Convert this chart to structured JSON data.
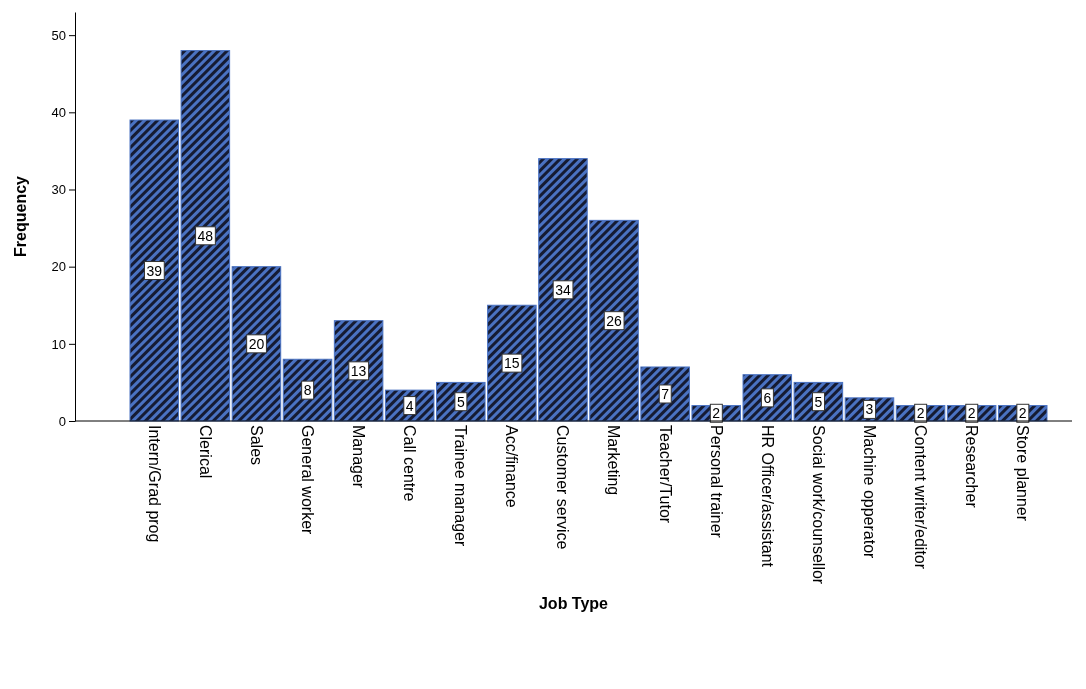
{
  "chart_data": {
    "type": "bar",
    "xlabel": "Job Type",
    "ylabel": "Frequency",
    "categories": [
      "Intern/Grad prog",
      "Clerical",
      "Sales",
      "General worker",
      "Manager",
      "Call centre",
      "Trainee manager",
      "Acc/finance",
      "Customer service",
      "Marketing",
      "Teacher/Tutor",
      "Personal trainer",
      "HR Officer/assistant",
      "Social work/counsellor",
      "Machine opperator",
      "Content writer/editor",
      "Researcher",
      "Store planner"
    ],
    "values": [
      39,
      48,
      20,
      8,
      13,
      4,
      5,
      15,
      34,
      26,
      7,
      2,
      6,
      5,
      3,
      2,
      2,
      2
    ],
    "color": "#4a72c2",
    "ylim": [
      0,
      53
    ],
    "yticks": [
      0,
      10,
      20,
      30,
      40,
      50
    ],
    "grid": false,
    "data_labels": true
  }
}
